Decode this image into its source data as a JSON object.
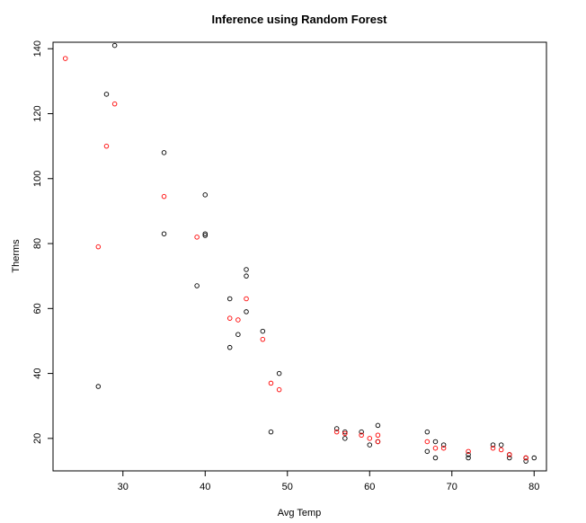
{
  "chart_data": {
    "type": "scatter",
    "title": "Inference using Random Forest",
    "xlabel": "Avg Temp",
    "ylabel": "Therms",
    "xlim": [
      21.5,
      81.5
    ],
    "ylim": [
      10,
      142
    ],
    "x_ticks": [
      30,
      40,
      50,
      60,
      70,
      80
    ],
    "y_ticks": [
      20,
      40,
      60,
      80,
      100,
      120,
      140
    ],
    "grid": false,
    "series": [
      {
        "color": "#000000",
        "marker": "open-circle",
        "points": [
          [
            29,
            141
          ],
          [
            28,
            126
          ],
          [
            35,
            108
          ],
          [
            40,
            95
          ],
          [
            35,
            83
          ],
          [
            40,
            83
          ],
          [
            40,
            82.5
          ],
          [
            45,
            72
          ],
          [
            45,
            70
          ],
          [
            39,
            67
          ],
          [
            43,
            63
          ],
          [
            45,
            59
          ],
          [
            47,
            53
          ],
          [
            44,
            52
          ],
          [
            43,
            48
          ],
          [
            49,
            40
          ],
          [
            27,
            36
          ],
          [
            48,
            22
          ],
          [
            56,
            23
          ],
          [
            57,
            22
          ],
          [
            57,
            20
          ],
          [
            59,
            22
          ],
          [
            60,
            18
          ],
          [
            61,
            24
          ],
          [
            61,
            19
          ],
          [
            67,
            22
          ],
          [
            67,
            16
          ],
          [
            68,
            19
          ],
          [
            68,
            14
          ],
          [
            69,
            18
          ],
          [
            72,
            15
          ],
          [
            72,
            14
          ],
          [
            75,
            18
          ],
          [
            76,
            18
          ],
          [
            77,
            15
          ],
          [
            77,
            14
          ],
          [
            79,
            14
          ],
          [
            79,
            13
          ],
          [
            80,
            14
          ]
        ]
      },
      {
        "color": "#ff0000",
        "marker": "open-circle",
        "points": [
          [
            23,
            137
          ],
          [
            29,
            123
          ],
          [
            28,
            110
          ],
          [
            27,
            79
          ],
          [
            35,
            94.5
          ],
          [
            39,
            82
          ],
          [
            45,
            63
          ],
          [
            43,
            57
          ],
          [
            44,
            56.5
          ],
          [
            47,
            50.5
          ],
          [
            48,
            37
          ],
          [
            49,
            35
          ],
          [
            56,
            22
          ],
          [
            57,
            21.5
          ],
          [
            59,
            21
          ],
          [
            60,
            20
          ],
          [
            61,
            21
          ],
          [
            61,
            19
          ],
          [
            67,
            19
          ],
          [
            68,
            17
          ],
          [
            69,
            17
          ],
          [
            72,
            16
          ],
          [
            75,
            17
          ],
          [
            76,
            16.5
          ],
          [
            77,
            15
          ],
          [
            79,
            14
          ]
        ]
      }
    ]
  }
}
